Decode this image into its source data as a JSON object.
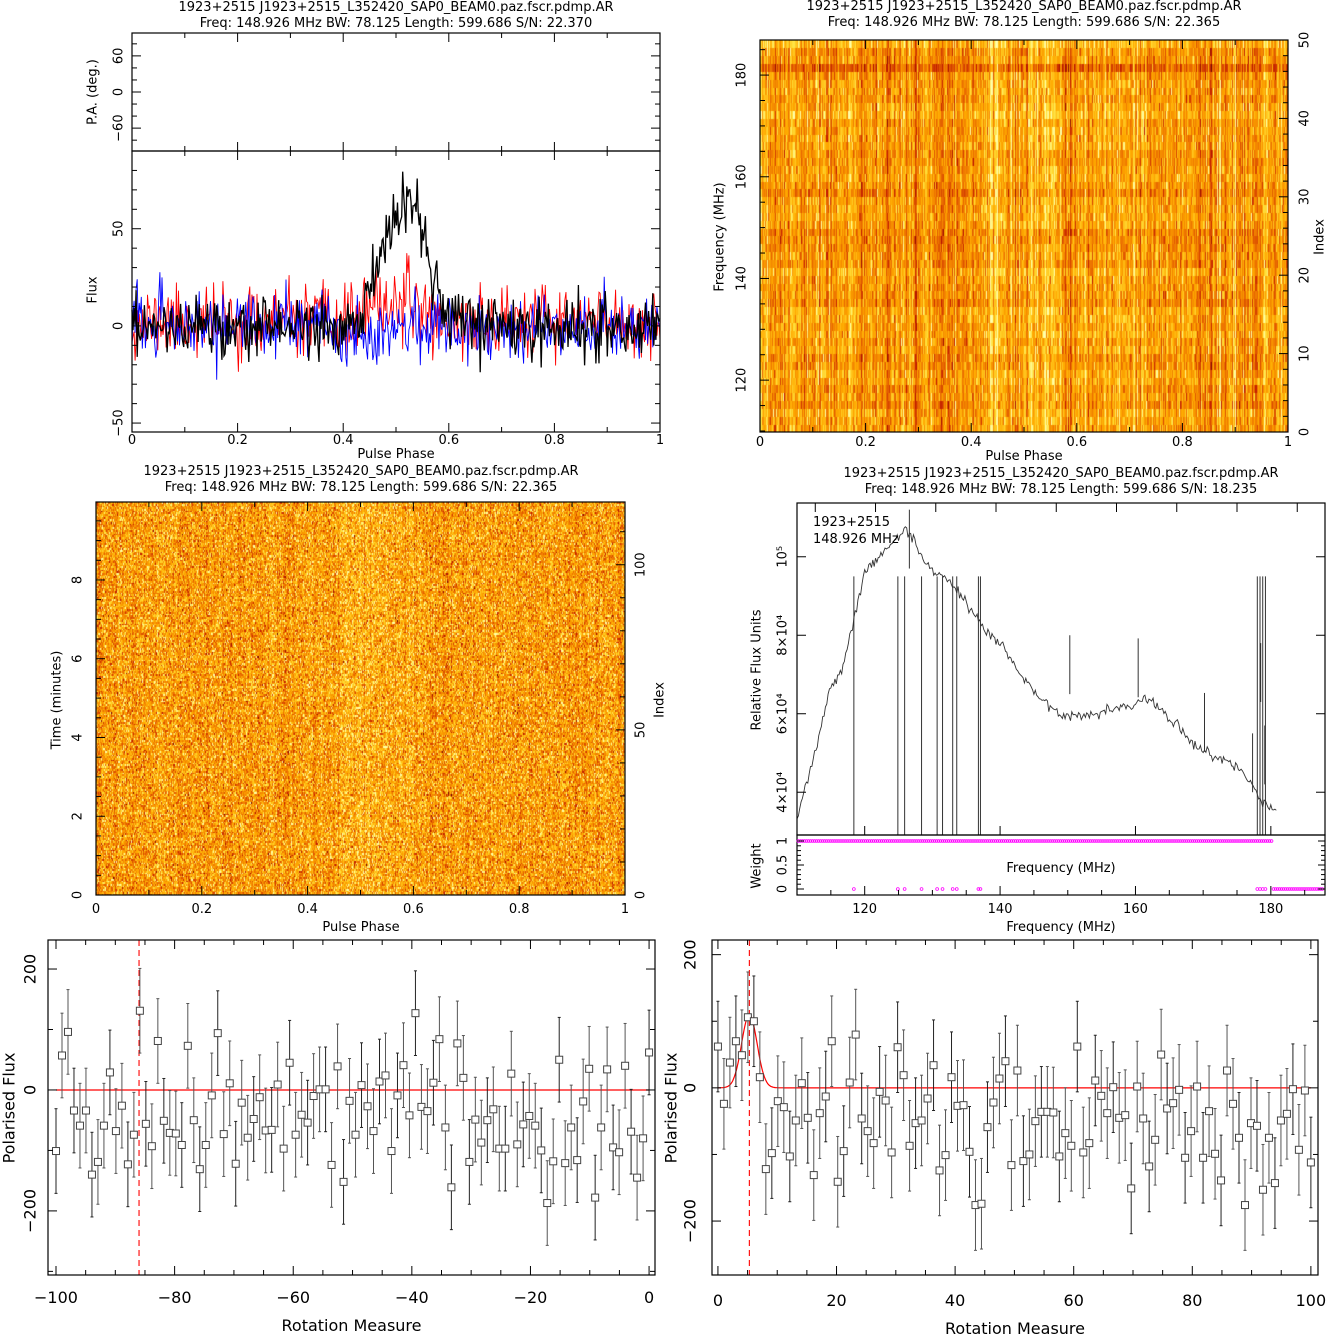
{
  "chart_data": [
    {
      "type": "line",
      "title": "1923+2515 J1923+2515_L352420_SAP0_BEAM0.paz.fscr.pdmp.AR",
      "subtitle": "Freq: 148.926 MHz BW: 78.125 Length: 599.686 S/N: 22.370",
      "xlabel": "Pulse Phase",
      "ylabel": "Flux",
      "pa_ylabel": "P.A. (deg.)",
      "xlim": [
        0,
        1
      ],
      "ylim": [
        -54.6,
        90
      ],
      "pa_ylim": [
        -98,
        98
      ],
      "x_ticks": [
        0,
        0.2,
        0.4,
        0.6,
        0.8,
        1
      ],
      "x_tick_labels": [
        "0",
        "0.2",
        "0.4",
        "0.6",
        "0.8",
        "1"
      ],
      "y_ticks": [
        -50,
        0,
        50
      ],
      "y_tick_labels": [
        "−50",
        "0",
        "50"
      ],
      "pa_ticks": [
        -60,
        0,
        60
      ],
      "pa_tick_labels": [
        "−60",
        "0",
        "60"
      ],
      "grid": false,
      "series": [
        {
          "color": "#ff0000",
          "values": [
            2,
            2,
            2,
            2,
            2,
            2,
            2,
            2,
            2,
            2,
            2,
            2,
            2,
            2,
            2,
            2,
            3,
            6,
            10,
            12,
            12,
            10,
            6,
            3,
            2,
            2,
            2,
            2,
            2,
            2,
            2,
            2,
            2,
            2,
            2,
            2,
            2,
            2,
            2,
            2
          ]
        },
        {
          "color": "#0000ff",
          "values": [
            0,
            0,
            0,
            0,
            0,
            0,
            0,
            0,
            0,
            0,
            0,
            0,
            0,
            0,
            0,
            -3,
            -5,
            -4,
            -2,
            0,
            0,
            0,
            0,
            0,
            0,
            0,
            0,
            0,
            0,
            0,
            0,
            0,
            0,
            0,
            0,
            0,
            0,
            0,
            0,
            0
          ]
        },
        {
          "color": "#000000",
          "values": [
            0,
            0,
            0,
            0,
            0,
            0,
            0,
            0,
            0,
            0,
            0,
            0,
            0,
            0,
            0,
            0,
            0,
            8,
            28,
            48,
            62,
            58,
            35,
            12,
            2,
            2,
            1,
            1,
            0,
            0,
            0,
            0,
            0,
            0,
            0,
            0,
            0,
            0,
            0,
            0
          ]
        }
      ]
    },
    {
      "type": "heatmap",
      "title": "1923+2515 J1923+2515_L352420_SAP0_BEAM0.paz.fscr.pdmp.AR",
      "subtitle": "Freq: 148.926 MHz BW: 78.125 Length: 599.686 S/N: 22.365",
      "xlabel": "Pulse Phase",
      "ylabel": "Frequency (MHz)",
      "right_ylabel": "Index",
      "xlim": [
        0,
        1
      ],
      "ylim": [
        109.8,
        186.9
      ],
      "right_ylim": [
        0,
        50
      ],
      "x_ticks": [
        0,
        0.2,
        0.4,
        0.6,
        0.8,
        1
      ],
      "x_tick_labels": [
        "0",
        "0.2",
        "0.4",
        "0.6",
        "0.8",
        "1"
      ],
      "y_ticks": [
        120,
        140,
        160,
        180
      ],
      "y_tick_labels": [
        "120",
        "140",
        "160",
        "180"
      ],
      "right_ticks": [
        0,
        10,
        20,
        30,
        40,
        50
      ],
      "right_tick_labels": [
        "0",
        "10",
        "20",
        "30",
        "40",
        "50"
      ],
      "colormap": "heat"
    },
    {
      "type": "heatmap",
      "title": "1923+2515 J1923+2515_L352420_SAP0_BEAM0.paz.fscr.pdmp.AR",
      "subtitle": "Freq: 148.926 MHz BW: 78.125 Length: 599.686 S/N: 22.365",
      "xlabel": "Pulse Phase",
      "ylabel": "Time (minutes)",
      "right_ylabel": "Index",
      "xlim": [
        0,
        1
      ],
      "ylim": [
        0,
        9.98
      ],
      "right_ylim": [
        0,
        119
      ],
      "x_ticks": [
        0,
        0.2,
        0.4,
        0.6,
        0.8,
        1
      ],
      "x_tick_labels": [
        "0",
        "0.2",
        "0.4",
        "0.6",
        "0.8",
        "1"
      ],
      "y_ticks": [
        0,
        2,
        4,
        6,
        8
      ],
      "y_tick_labels": [
        "0",
        "2",
        "4",
        "6",
        "8"
      ],
      "right_ticks": [
        0,
        50,
        100
      ],
      "right_tick_labels": [
        "0",
        "50",
        "100"
      ],
      "colormap": "heat"
    },
    {
      "type": "line",
      "title": "1923+2515 J1923+2515_L352420_SAP0_BEAM0.paz.fscr.pdmp.AR",
      "subtitle": "Freq: 148.926 MHz BW: 78.125 Length: 599.686 S/N: 18.235",
      "annotation": [
        "1923+2515",
        "148.926 MHz"
      ],
      "xlabel": "Frequency (MHz)",
      "inner_xlabel": "Frequency (MHz)",
      "ylabel": "Relative Flux Units",
      "xlim": [
        110,
        188
      ],
      "ylim": [
        29100,
        113700
      ],
      "x_ticks": [
        120,
        140,
        160,
        180
      ],
      "x_tick_labels": [
        "120",
        "140",
        "160",
        "180"
      ],
      "y_ticks": [
        40000,
        60000,
        80000,
        100000
      ],
      "y_tick_labels": [
        "4×10⁴",
        "6×10⁴",
        "8×10⁴",
        "10⁵"
      ],
      "line_color": "#000000",
      "bandpass": [
        [
          110,
          32600
        ],
        [
          110.9,
          39400
        ],
        [
          112.6,
          49200
        ],
        [
          114.8,
          65700
        ],
        [
          116.5,
          70800
        ],
        [
          117.6,
          78000
        ],
        [
          118.4,
          84700
        ],
        [
          119,
          88100
        ],
        [
          119.8,
          94900
        ],
        [
          121.4,
          99200
        ],
        [
          123.1,
          101700
        ],
        [
          124.8,
          104200
        ],
        [
          126.1,
          107600
        ],
        [
          127.5,
          103800
        ],
        [
          128.3,
          100000
        ],
        [
          130.3,
          95800
        ],
        [
          132.5,
          94100
        ],
        [
          134.1,
          90700
        ],
        [
          135.8,
          86400
        ],
        [
          138,
          80500
        ],
        [
          140.2,
          78000
        ],
        [
          142.4,
          71200
        ],
        [
          145.2,
          65300
        ],
        [
          147.4,
          61900
        ],
        [
          149.6,
          59300
        ],
        [
          152.4,
          59300
        ],
        [
          154.6,
          60200
        ],
        [
          156.8,
          61400
        ],
        [
          159.6,
          62300
        ],
        [
          161.2,
          64400
        ],
        [
          164,
          61000
        ],
        [
          166.7,
          55900
        ],
        [
          169.5,
          50800
        ],
        [
          171.7,
          48700
        ],
        [
          174.5,
          47500
        ],
        [
          177,
          43200
        ],
        [
          178.3,
          38100
        ],
        [
          180,
          36400
        ],
        [
          180.8,
          35200
        ]
      ],
      "rfi_spikes": [
        [
          126.6,
          112000
        ],
        [
          150.3,
          80000
        ],
        [
          160.4,
          79200
        ],
        [
          170.2,
          65300
        ],
        [
          177.3,
          55000
        ],
        [
          178.5,
          78000
        ],
        [
          179.1,
          57000
        ]
      ],
      "zero_weight_channels": [
        118.4,
        124.9,
        125.9,
        128.4,
        130.7,
        131.5,
        133.0,
        133.6,
        136.8,
        137.1,
        178.0,
        178.4,
        178.8,
        179.2
      ],
      "flagged_above_mhz": 180.2,
      "weight": {
        "ylabel": "Weight",
        "ylim": [
          -0.125,
          1.125
        ],
        "y_ticks": [
          0,
          0.5,
          1
        ],
        "y_tick_labels": [
          "0",
          "0.5",
          "1"
        ],
        "marker_color": "#ff00ff"
      }
    },
    {
      "type": "scatter",
      "xlabel": "Rotation Measure",
      "ylabel": "Polarised Flux",
      "xlim": [
        -101.35,
        1.0
      ],
      "ylim": [
        -306,
        248
      ],
      "x_ticks": [
        -100,
        -80,
        -60,
        -40,
        -20,
        0
      ],
      "x_tick_labels": [
        "−100",
        "−80",
        "−60",
        "−40",
        "−20",
        "0"
      ],
      "y_ticks": [
        -200,
        0,
        200
      ],
      "y_tick_labels": [
        "−200",
        "0",
        "200"
      ],
      "rm_first": -100,
      "rm_last": 0,
      "error": 70,
      "values": [
        -101,
        57,
        96,
        -34,
        -59,
        -34,
        -140,
        -119,
        -59,
        29,
        -68,
        -26,
        -123,
        -74,
        131,
        -56,
        -93,
        81,
        -51,
        -71,
        -72,
        -91,
        73,
        -50,
        -131,
        -91,
        -9,
        94,
        -73,
        11,
        -122,
        -21,
        -79,
        -48,
        -12,
        -67,
        -66,
        9,
        -97,
        45,
        -74,
        -41,
        -54,
        -10,
        1,
        1,
        -124,
        39,
        -152,
        -18,
        -74,
        8,
        -27,
        -68,
        14,
        24,
        -101,
        -9,
        41,
        -42,
        127,
        -28,
        -35,
        12,
        84,
        -62,
        -161,
        77,
        20,
        -119,
        -49,
        -87,
        -50,
        -32,
        -97,
        -97,
        27,
        -90,
        -57,
        -43,
        -59,
        -100,
        -187,
        -118,
        50,
        -121,
        -62,
        -116,
        -19,
        35,
        -178,
        -62,
        34,
        -95,
        -103,
        40,
        -69,
        -145,
        -80,
        62
      ],
      "best_rm": -86,
      "model": {
        "type": "flat",
        "level": 0,
        "color": "#ff0000"
      }
    },
    {
      "type": "scatter",
      "xlabel": "Rotation Measure",
      "ylabel": "Polarised Flux",
      "xlim": [
        -1.0,
        101.2
      ],
      "ylim": [
        -281,
        222
      ],
      "x_ticks": [
        0,
        20,
        40,
        60,
        80,
        100
      ],
      "x_tick_labels": [
        "0",
        "20",
        "40",
        "60",
        "80",
        "100"
      ],
      "y_ticks": [
        -200,
        0,
        200
      ],
      "y_tick_labels": [
        "−200",
        "0",
        "200"
      ],
      "rm_first": 0,
      "rm_last": 100,
      "error": 68,
      "values": [
        62,
        -24,
        38,
        70,
        49,
        106,
        100,
        16,
        -122,
        -98,
        -20,
        -29,
        -103,
        -49,
        7,
        -45,
        -131,
        -38,
        -13,
        70,
        -141,
        -95,
        8,
        80,
        -46,
        -65,
        -83,
        -6,
        -19,
        -97,
        61,
        19,
        -87,
        -53,
        -49,
        -16,
        34,
        -124,
        -101,
        16,
        -27,
        -26,
        -96,
        -176,
        -174,
        -59,
        -22,
        14,
        40,
        -116,
        26,
        -110,
        -100,
        -50,
        -36,
        -36,
        -37,
        -103,
        -68,
        -87,
        62,
        -97,
        -83,
        11,
        -12,
        -38,
        1,
        -45,
        -41,
        -151,
        2,
        -46,
        -118,
        -78,
        50,
        -31,
        -23,
        -3,
        -105,
        -65,
        2,
        -105,
        -35,
        -99,
        -139,
        26,
        -24,
        -75,
        -176,
        -53,
        -57,
        -153,
        -75,
        -143,
        -49,
        -39,
        -2,
        -93,
        -4,
        -112
      ],
      "best_rm": 5.3,
      "model": {
        "type": "gaussian",
        "peak_rm": 5.3,
        "amplitude": 110,
        "sigma": 1.3,
        "color": "#ff0000"
      }
    }
  ]
}
